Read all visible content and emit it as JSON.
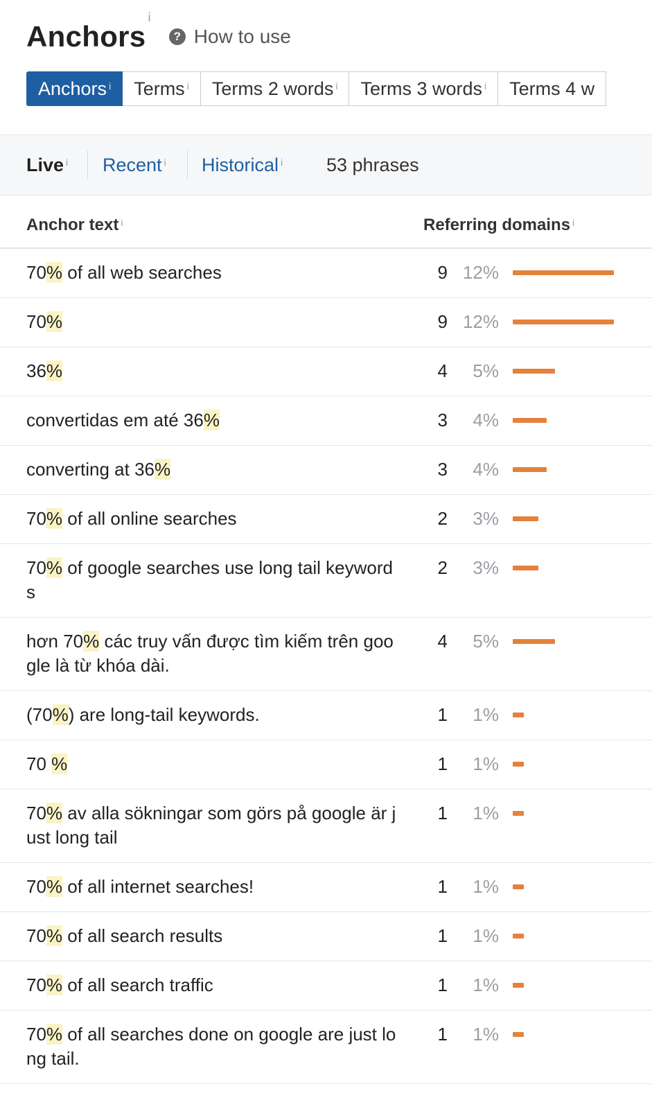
{
  "colors": {
    "accent": "#1e5fa3",
    "bar": "#e4813b",
    "highlight": "#fbf3c5"
  },
  "header": {
    "title": "Anchors",
    "title_sup": "i",
    "howto_icon": "question-circle-icon",
    "howto_label": "How to use"
  },
  "tabs": [
    {
      "label": "Anchors",
      "sup": "i",
      "active": true
    },
    {
      "label": "Terms",
      "sup": "i"
    },
    {
      "label": "Terms 2 words",
      "sup": "i"
    },
    {
      "label": "Terms 3 words",
      "sup": "i"
    },
    {
      "label": "Terms 4 w"
    }
  ],
  "filters": {
    "live": "Live",
    "live_sup": "i",
    "recent": "Recent",
    "recent_sup": "i",
    "historical": "Historical",
    "historical_sup": "i",
    "count": "53 phrases"
  },
  "table": {
    "col_anchor": "Anchor text",
    "col_anchor_sup": "i",
    "col_ref": "Referring domains",
    "col_ref_sup": "i",
    "rows": [
      {
        "pre": "70",
        "hl": "%",
        "post": " of all web searches",
        "domains": "9",
        "percent": "12%",
        "share": 12
      },
      {
        "pre": "70",
        "hl": "%",
        "post": "",
        "domains": "9",
        "percent": "12%",
        "share": 12
      },
      {
        "pre": "36",
        "hl": "%",
        "post": "",
        "domains": "4",
        "percent": "5%",
        "share": 5
      },
      {
        "pre": "convertidas em até 36",
        "hl": "%",
        "post": "",
        "domains": "3",
        "percent": "4%",
        "share": 4
      },
      {
        "pre": "converting at 36",
        "hl": "%",
        "post": "",
        "domains": "3",
        "percent": "4%",
        "share": 4
      },
      {
        "pre": "70",
        "hl": "%",
        "post": " of all online searches",
        "domains": "2",
        "percent": "3%",
        "share": 3
      },
      {
        "pre": "70",
        "hl": "%",
        "post": " of google searches use long tail keywords",
        "domains": "2",
        "percent": "3%",
        "share": 3,
        "lines": 2
      },
      {
        "pre": "hơn 70",
        "hl": "%",
        "post": " các truy vấn được tìm kiếm trên google là từ khóa dài.",
        "domains": "4",
        "percent": "5%",
        "share": 5,
        "lines": 2
      },
      {
        "pre": "(70",
        "hl": "%",
        "post": ") are long-tail keywords.",
        "domains": "1",
        "percent": "1%",
        "share": 1
      },
      {
        "pre": "70 ",
        "hl": "%",
        "post": "",
        "domains": "1",
        "percent": "1%",
        "share": 1
      },
      {
        "pre": "70",
        "hl": "%",
        "post": " av alla sökningar som görs på google är just long tail",
        "domains": "1",
        "percent": "1%",
        "share": 1,
        "lines": 2
      },
      {
        "pre": "70",
        "hl": "%",
        "post": " of all internet searches!",
        "domains": "1",
        "percent": "1%",
        "share": 1
      },
      {
        "pre": "70",
        "hl": "%",
        "post": " of all search results",
        "domains": "1",
        "percent": "1%",
        "share": 1
      },
      {
        "pre": "70",
        "hl": "%",
        "post": " of all search traffic",
        "domains": "1",
        "percent": "1%",
        "share": 1
      },
      {
        "pre": "70",
        "hl": "%",
        "post": " of all searches done on google are just long tail.",
        "domains": "1",
        "percent": "1%",
        "share": 1,
        "lines": 2
      }
    ]
  }
}
